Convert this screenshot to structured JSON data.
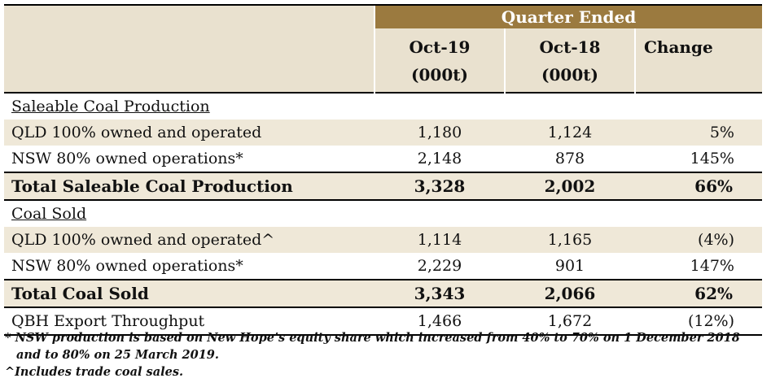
{
  "header": {
    "group_label": "Quarter Ended",
    "col1_line1": "Oct-19",
    "col1_line2": "(000t)",
    "col2_line1": "Oct-18",
    "col2_line2": "(000t)",
    "col3": "Change"
  },
  "rows": [
    {
      "label": "Saleable Coal Production",
      "v1": "",
      "v2": "",
      "chg": ""
    },
    {
      "label": "QLD 100% owned and operated",
      "v1": "1,180",
      "v2": "1,124",
      "chg": "5%"
    },
    {
      "label": "NSW  80% owned operations*",
      "v1": "2,148",
      "v2": "878",
      "chg": "145%"
    },
    {
      "label": "Total Saleable Coal Production",
      "v1": "3,328",
      "v2": "2,002",
      "chg": "66%"
    },
    {
      "label": "Coal Sold",
      "v1": "",
      "v2": "",
      "chg": ""
    },
    {
      "label": "QLD 100% owned and operated^",
      "v1": "1,114",
      "v2": "1,165",
      "chg": "(4%)"
    },
    {
      "label": "NSW  80% owned operations*",
      "v1": "2,229",
      "v2": "901",
      "chg": "147%"
    },
    {
      "label": "Total Coal Sold",
      "v1": "3,343",
      "v2": "2,066",
      "chg": "62%"
    },
    {
      "label": "QBH Export Throughput",
      "v1": "1,466",
      "v2": "1,672",
      "chg": "(12%)"
    }
  ],
  "footnotes": {
    "note1": "*  NSW production is based on New Hope’s equity share which increased from 40% to 70% on 1 December 2018 and to 80% on 25 March 2019.",
    "note2": "^Includes trade coal sales."
  },
  "colors": {
    "header_gold": "#9b7a3f",
    "shade_beige": "#efe8d8",
    "header_beige": "#e9e1cf"
  }
}
